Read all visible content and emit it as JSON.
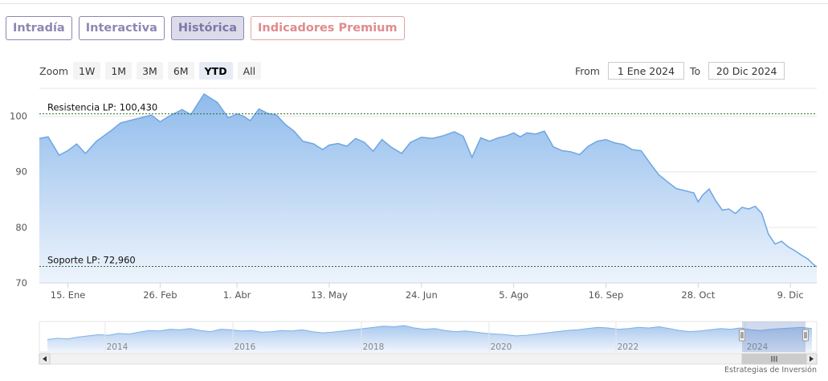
{
  "tabs": [
    {
      "label": "Intradía"
    },
    {
      "label": "Interactiva"
    },
    {
      "label": "Histórica"
    },
    {
      "label": "Indicadores Premium"
    }
  ],
  "zoom": {
    "label": "Zoom",
    "buttons": [
      "1W",
      "1M",
      "3M",
      "6M",
      "YTD",
      "All"
    ],
    "selected": "YTD"
  },
  "range": {
    "from_label": "From",
    "from_value": "1 Ene 2024",
    "to_label": "To",
    "to_value": "20 Dic 2024"
  },
  "brand": "Estrategias de Inversión",
  "chart_data": {
    "type": "area",
    "title": "",
    "xlabel": "",
    "ylabel": "",
    "ylim": [
      70,
      105
    ],
    "yticks": [
      70,
      80,
      90,
      100
    ],
    "x_ticks": [
      "15. Ene",
      "26. Feb",
      "1. Abr",
      "13. May",
      "24. Jun",
      "5. Ago",
      "16. Sep",
      "28. Oct",
      "9. Dic"
    ],
    "x_tick_positions": [
      14,
      56,
      91,
      133,
      175,
      217,
      259,
      301,
      343
    ],
    "grid": true,
    "x": [
      1,
      5,
      10,
      14,
      18,
      22,
      27,
      33,
      38,
      45,
      52,
      56,
      60,
      66,
      70,
      76,
      82,
      87,
      91,
      94,
      97,
      101,
      105,
      109,
      113,
      117,
      121,
      126,
      130,
      133,
      137,
      141,
      145,
      149,
      153,
      157,
      161,
      166,
      170,
      175,
      180,
      185,
      190,
      194,
      198,
      202,
      206,
      210,
      214,
      217,
      220,
      223,
      227,
      231,
      235,
      239,
      243,
      247,
      251,
      255,
      259,
      263,
      267,
      271,
      275,
      279,
      283,
      287,
      291,
      295,
      299,
      301,
      303,
      306,
      309,
      312,
      315,
      318,
      321,
      324,
      327,
      330,
      333,
      336,
      339,
      342,
      345,
      348,
      351,
      353,
      355
    ],
    "y": [
      96.0,
      96.3,
      93.0,
      93.8,
      95.0,
      93.3,
      95.5,
      97.2,
      98.8,
      99.5,
      100.2,
      99.0,
      100.0,
      101.2,
      100.3,
      104.0,
      102.5,
      99.7,
      100.4,
      100.0,
      99.2,
      101.3,
      100.5,
      100.2,
      98.5,
      97.3,
      95.5,
      95.0,
      94.0,
      94.8,
      95.1,
      94.6,
      96.0,
      95.3,
      93.7,
      95.8,
      94.5,
      93.3,
      95.3,
      96.2,
      96.0,
      96.5,
      97.2,
      96.4,
      92.6,
      96.1,
      95.5,
      96.1,
      96.5,
      97.0,
      96.3,
      97.0,
      96.8,
      97.3,
      94.5,
      93.8,
      93.6,
      93.1,
      94.6,
      95.5,
      95.8,
      95.2,
      94.9,
      94.0,
      93.8,
      91.6,
      89.5,
      88.2,
      87.0,
      86.6,
      86.2,
      84.6,
      85.8,
      86.9,
      84.8,
      83.1,
      83.3,
      82.5,
      83.6,
      83.3,
      83.8,
      82.5,
      78.8,
      77.0,
      77.5,
      76.5,
      75.8,
      75.0,
      74.3,
      73.5,
      72.9
    ],
    "support": {
      "label": "Soporte LP: 72,960",
      "value": 72.96
    },
    "resistance": {
      "label": "Resistencia LP: 100,430",
      "value": 100.43
    },
    "navigator": {
      "year_labels": [
        "2014",
        "2016",
        "2018",
        "2020",
        "2022",
        "2024"
      ],
      "series": [
        18,
        20,
        19,
        22,
        24,
        26,
        25,
        28,
        27,
        30,
        33,
        32,
        35,
        34,
        36,
        33,
        31,
        35,
        34,
        32,
        33,
        30,
        31,
        33,
        32,
        34,
        31,
        29,
        30,
        32,
        34,
        36,
        38,
        40,
        39,
        41,
        37,
        35,
        36,
        33,
        31,
        32,
        30,
        28,
        27,
        26,
        24,
        25,
        27,
        29,
        31,
        33,
        34,
        36,
        38,
        37,
        35,
        36,
        38,
        37,
        39,
        36,
        33,
        31,
        32,
        34,
        36,
        35,
        37,
        34,
        33,
        35,
        36,
        37,
        38,
        36
      ]
    }
  }
}
